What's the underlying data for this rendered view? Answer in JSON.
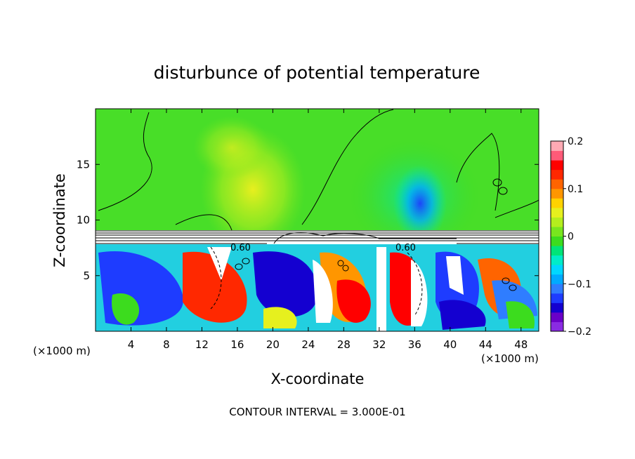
{
  "chart_data": {
    "type": "heatmap",
    "title": "disturbunce of potential temperature",
    "xlabel": "X-coordinate",
    "ylabel": "Z-coordinate",
    "x_unit": "(×1000 m)",
    "x_unit_right": "(×1000 m)",
    "xlim": [
      0,
      50
    ],
    "ylim": [
      0,
      20
    ],
    "x_ticks": [
      4,
      8,
      12,
      16,
      20,
      24,
      28,
      32,
      36,
      40,
      44,
      48
    ],
    "y_ticks": [
      5,
      10,
      15
    ],
    "colorbar": {
      "range": [
        -0.2,
        0.2
      ],
      "tick_labels": [
        "0.2",
        "0.1",
        "0",
        "−0.1",
        "−0.2"
      ],
      "tick_values": [
        0.2,
        0.1,
        0,
        -0.1,
        -0.2
      ],
      "colors": [
        "#8a2be2",
        "#6a00c8",
        "#1400d0",
        "#1e3cff",
        "#2f7dff",
        "#00aaff",
        "#00d7ff",
        "#00ecc8",
        "#00e478",
        "#3cdc1e",
        "#78e61e",
        "#b4ee1e",
        "#e6f01e",
        "#ffd200",
        "#ff9600",
        "#ff6400",
        "#ff2800",
        "#ff0000",
        "#ff5a78",
        "#ffaab4"
      ]
    },
    "contour_labels": [
      {
        "text": "0.60",
        "x": 16.4,
        "z": 7.85
      },
      {
        "text": "0.60",
        "x": 35.2,
        "z": 7.85
      }
    ],
    "footer": "CONTOUR INTERVAL = 3.000E-01"
  }
}
